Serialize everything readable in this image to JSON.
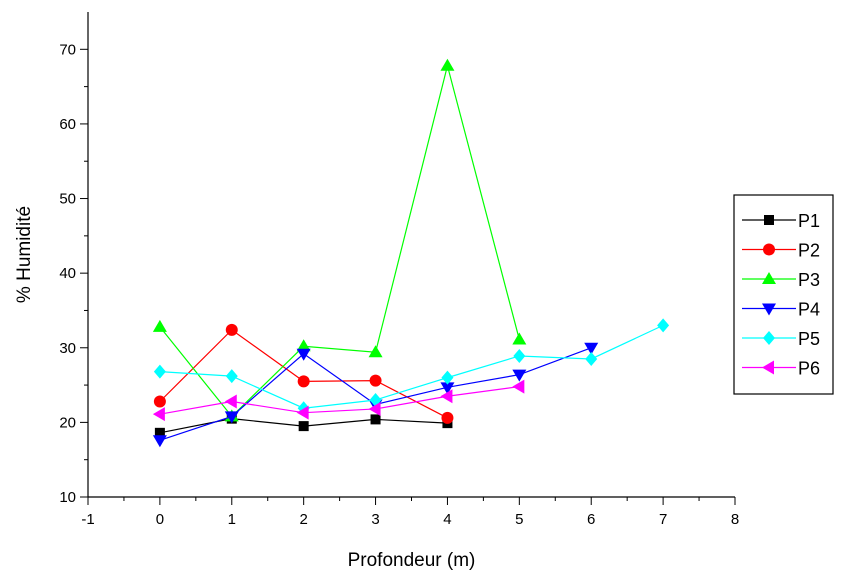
{
  "chart_data": {
    "type": "line",
    "xlabel": "Profondeur (m)",
    "ylabel": "% Humidité",
    "xlim": [
      -1,
      8
    ],
    "ylim": [
      10,
      75
    ],
    "xticks": [
      "-1",
      "0",
      "1",
      "2",
      "3",
      "4",
      "5",
      "6",
      "7",
      "8"
    ],
    "yticks": [
      "10",
      "20",
      "30",
      "40",
      "50",
      "60",
      "70"
    ],
    "grid": false,
    "legend_position": "right",
    "series": [
      {
        "name": "P1",
        "color": "#000000",
        "marker": "square",
        "x": [
          0,
          1,
          2,
          3,
          4
        ],
        "y": [
          18.6,
          20.5,
          19.5,
          20.4,
          19.9
        ]
      },
      {
        "name": "P2",
        "color": "#ff0000",
        "marker": "circle",
        "x": [
          0,
          1,
          2,
          3,
          4
        ],
        "y": [
          22.8,
          32.4,
          25.5,
          25.6,
          20.6
        ]
      },
      {
        "name": "P3",
        "color": "#00ff00",
        "marker": "triangle-up",
        "x": [
          0,
          1,
          2,
          3,
          4,
          5
        ],
        "y": [
          32.8,
          20.8,
          30.2,
          29.4,
          67.8,
          31.1
        ]
      },
      {
        "name": "P4",
        "color": "#0000ff",
        "marker": "triangle-down",
        "x": [
          0,
          1,
          2,
          3,
          4,
          5,
          6
        ],
        "y": [
          17.6,
          20.8,
          29.2,
          22.4,
          24.7,
          26.4,
          30.0
        ]
      },
      {
        "name": "P5",
        "color": "#00ffff",
        "marker": "diamond",
        "x": [
          0,
          1,
          2,
          3,
          4,
          5,
          6,
          7
        ],
        "y": [
          26.8,
          26.2,
          21.9,
          23.0,
          26.0,
          28.9,
          28.5,
          33.0
        ]
      },
      {
        "name": "P6",
        "color": "#ff00ff",
        "marker": "triangle-left",
        "x": [
          0,
          1,
          2,
          3,
          4,
          5
        ],
        "y": [
          21.1,
          22.8,
          21.3,
          21.8,
          23.5,
          24.8
        ]
      }
    ]
  }
}
